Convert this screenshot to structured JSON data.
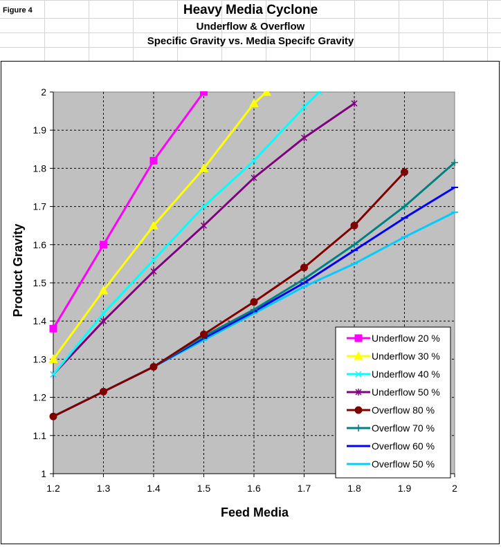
{
  "figure_label": "Figure 4",
  "titles": {
    "line1": "Heavy Media Cyclone",
    "line2": "Underflow & Overflow",
    "line3": "Specific Gravity vs. Media Specifc Gravity"
  },
  "chart_data": {
    "type": "line",
    "xlabel": "Feed Media",
    "ylabel": "Product Gravity",
    "xlim": [
      1.2,
      2.0
    ],
    "ylim": [
      1.0,
      2.0
    ],
    "xticks": [
      "1.2",
      "1.3",
      "1.4",
      "1.5",
      "1.6",
      "1.7",
      "1.8",
      "1.9",
      "2"
    ],
    "yticks": [
      "1",
      "1.1",
      "1.2",
      "1.3",
      "1.4",
      "1.5",
      "1.6",
      "1.7",
      "1.8",
      "1.9",
      "2"
    ],
    "grid": true,
    "plot_background": "#c0c0c0",
    "legend_position": "bottom-right",
    "series": [
      {
        "name": "Underflow 20 %",
        "color": "#ff00ff",
        "marker": "square",
        "x": [
          1.2,
          1.3,
          1.4,
          1.5
        ],
        "y": [
          1.38,
          1.6,
          1.82,
          2.0
        ]
      },
      {
        "name": "Underflow 30 %",
        "color": "#ffff00",
        "marker": "triangle",
        "x": [
          1.2,
          1.3,
          1.4,
          1.5,
          1.6,
          1.625
        ],
        "y": [
          1.3,
          1.48,
          1.65,
          1.8,
          1.97,
          2.0
        ]
      },
      {
        "name": "Underflow 40 %",
        "color": "#00ffff",
        "marker": "x",
        "x": [
          1.2,
          1.3,
          1.4,
          1.5,
          1.6,
          1.7,
          1.73
        ],
        "y": [
          1.26,
          1.42,
          1.56,
          1.7,
          1.82,
          1.96,
          2.0
        ]
      },
      {
        "name": "Underflow 50 %",
        "color": "#800080",
        "marker": "star",
        "x": [
          1.2,
          1.3,
          1.4,
          1.5,
          1.6,
          1.7,
          1.8
        ],
        "y": [
          1.26,
          1.4,
          1.53,
          1.65,
          1.775,
          1.88,
          1.97
        ]
      },
      {
        "name": "Overflow 80 %",
        "color": "#800000",
        "marker": "circle",
        "x": [
          1.2,
          1.3,
          1.4,
          1.5,
          1.6,
          1.7,
          1.8,
          1.9
        ],
        "y": [
          1.15,
          1.215,
          1.28,
          1.365,
          1.45,
          1.54,
          1.65,
          1.79
        ]
      },
      {
        "name": "Overflow 70 %",
        "color": "#008080",
        "marker": "plus",
        "x": [
          1.2,
          1.3,
          1.4,
          1.5,
          1.6,
          1.7,
          1.8,
          1.9,
          2.0
        ],
        "y": [
          1.15,
          1.215,
          1.28,
          1.36,
          1.43,
          1.51,
          1.6,
          1.7,
          1.815
        ]
      },
      {
        "name": "Overflow 60 %",
        "color": "#0000ff",
        "marker": "dash",
        "x": [
          1.2,
          1.3,
          1.4,
          1.5,
          1.6,
          1.7,
          1.8,
          1.9,
          2.0
        ],
        "y": [
          1.15,
          1.215,
          1.28,
          1.355,
          1.425,
          1.5,
          1.585,
          1.67,
          1.75
        ]
      },
      {
        "name": "Overflow 50 %",
        "color": "#00ccff",
        "marker": "dash",
        "x": [
          1.2,
          1.3,
          1.4,
          1.5,
          1.6,
          1.7,
          1.8,
          1.9,
          2.0
        ],
        "y": [
          1.15,
          1.215,
          1.28,
          1.35,
          1.42,
          1.49,
          1.55,
          1.62,
          1.685
        ]
      }
    ]
  }
}
